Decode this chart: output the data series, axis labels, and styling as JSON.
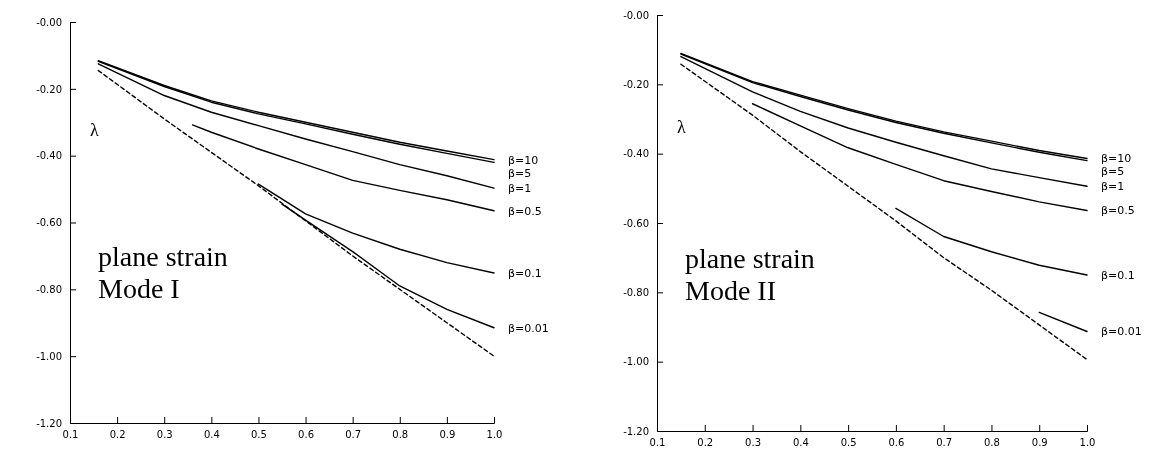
{
  "chart_data": [
    {
      "type": "line",
      "ylabel": "λ",
      "annotations": [
        "plane strain\nMode I"
      ],
      "xlim": [
        0.1,
        1.0
      ],
      "ylim": [
        -1.2,
        0
      ],
      "xticks": [
        0.1,
        0.2,
        0.3,
        0.4,
        0.5,
        0.6,
        0.7,
        0.8,
        0.9,
        {
          "value": 1.0,
          "label": "1.0"
        }
      ],
      "yticks": [
        {
          "value": -1.2,
          "label": "-1.20"
        },
        {
          "value": -1.0,
          "label": "-1.00"
        },
        {
          "value": -0.8,
          "label": "-0.80"
        },
        {
          "value": -0.6,
          "label": "-0.60"
        },
        {
          "value": -0.4,
          "label": "-0.40"
        },
        {
          "value": -0.2,
          "label": "-0.20"
        },
        {
          "value": 0,
          "label": "-0.00"
        }
      ],
      "grid": false,
      "series": [
        {
          "name": "β=10",
          "color": "#000000",
          "x": [
            0.16,
            0.3,
            0.4,
            0.5,
            0.6,
            0.7,
            0.8,
            0.9,
            1.0
          ],
          "values": [
            -0.116,
            -0.19,
            -0.236,
            -0.27,
            -0.3,
            -0.33,
            -0.36,
            -0.386,
            -0.412
          ]
        },
        {
          "name": "β=5",
          "color": "#000000",
          "x": [
            0.16,
            0.3,
            0.4,
            0.5,
            0.6,
            0.7,
            0.8,
            0.9,
            1.0
          ],
          "values": [
            -0.118,
            -0.193,
            -0.24,
            -0.275,
            -0.305,
            -0.336,
            -0.366,
            -0.393,
            -0.42
          ]
        },
        {
          "name": "β=1",
          "color": "#000000",
          "x": [
            0.16,
            0.3,
            0.4,
            0.5,
            0.6,
            0.7,
            0.8,
            0.9,
            1.0
          ],
          "values": [
            -0.125,
            -0.22,
            -0.27,
            -0.31,
            -0.35,
            -0.388,
            -0.427,
            -0.46,
            -0.497
          ]
        },
        {
          "name": "β=0.5",
          "color": "#000000",
          "x": [
            0.36,
            0.4,
            0.5,
            0.6,
            0.7,
            0.8,
            0.9,
            1.0
          ],
          "values": [
            -0.308,
            -0.33,
            -0.38,
            -0.427,
            -0.474,
            -0.504,
            -0.532,
            -0.565
          ]
        },
        {
          "name": "β=0.1",
          "color": "#000000",
          "x": [
            0.5,
            0.6,
            0.7,
            0.8,
            0.9,
            1.0
          ],
          "values": [
            -0.485,
            -0.574,
            -0.632,
            -0.68,
            -0.72,
            -0.751
          ]
        },
        {
          "name": "β=0.01",
          "color": "#000000",
          "x": [
            0.55,
            0.6,
            0.7,
            0.8,
            0.9,
            1.0
          ],
          "values": [
            -0.545,
            -0.593,
            -0.687,
            -0.79,
            -0.86,
            -0.915
          ]
        },
        {
          "color": "#000000",
          "line_style": "dashed",
          "x": [
            0.16,
            0.3,
            0.4,
            0.5,
            0.6,
            0.7,
            0.8,
            0.9,
            1.0
          ],
          "values": [
            -0.145,
            -0.29,
            -0.39,
            -0.49,
            -0.595,
            -0.7,
            -0.8,
            -0.9,
            -1.0
          ]
        }
      ]
    },
    {
      "type": "line",
      "ylabel": "λ",
      "annotations": [
        "plane strain\nMode II"
      ],
      "xlim": [
        0.1,
        1.0
      ],
      "ylim": [
        -1.2,
        0
      ],
      "xticks": [
        0.1,
        0.2,
        0.3,
        0.4,
        0.5,
        0.6,
        0.7,
        0.8,
        0.9,
        {
          "value": 1.0,
          "label": "1.0"
        }
      ],
      "yticks": [
        {
          "value": -1.2,
          "label": "-1.20"
        },
        {
          "value": -1.0,
          "label": "-1.00"
        },
        {
          "value": -0.8,
          "label": "-0.80"
        },
        {
          "value": -0.6,
          "label": "-0.60"
        },
        {
          "value": -0.4,
          "label": "-0.40"
        },
        {
          "value": -0.2,
          "label": "-0.20"
        },
        {
          "value": 0,
          "label": "-0.00"
        }
      ],
      "grid": false,
      "series": [
        {
          "name": "β=10",
          "color": "#000000",
          "x": [
            0.15,
            0.3,
            0.4,
            0.5,
            0.6,
            0.7,
            0.8,
            0.9,
            1.0
          ],
          "values": [
            -0.111,
            -0.192,
            -0.231,
            -0.27,
            -0.306,
            -0.337,
            -0.364,
            -0.391,
            -0.414
          ]
        },
        {
          "name": "β=5",
          "color": "#000000",
          "x": [
            0.15,
            0.3,
            0.4,
            0.5,
            0.6,
            0.7,
            0.8,
            0.9,
            1.0
          ],
          "values": [
            -0.113,
            -0.195,
            -0.235,
            -0.274,
            -0.31,
            -0.341,
            -0.369,
            -0.396,
            -0.42
          ]
        },
        {
          "name": "β=1",
          "color": "#000000",
          "x": [
            0.15,
            0.3,
            0.4,
            0.5,
            0.6,
            0.7,
            0.8,
            0.9,
            1.0
          ],
          "values": [
            -0.12,
            -0.222,
            -0.278,
            -0.326,
            -0.367,
            -0.406,
            -0.444,
            -0.469,
            -0.494
          ]
        },
        {
          "name": "β=0.5",
          "color": "#000000",
          "x": [
            0.3,
            0.4,
            0.5,
            0.6,
            0.7,
            0.8,
            0.9,
            1.0
          ],
          "values": [
            -0.256,
            -0.32,
            -0.383,
            -0.431,
            -0.478,
            -0.509,
            -0.539,
            -0.564
          ]
        },
        {
          "name": "β=0.1",
          "color": "#000000",
          "x": [
            0.6,
            0.7,
            0.8,
            0.9,
            1.0
          ],
          "values": [
            -0.558,
            -0.639,
            -0.683,
            -0.722,
            -0.75
          ]
        },
        {
          "name": "β=0.01",
          "color": "#000000",
          "x": [
            0.9,
            1.0
          ],
          "values": [
            -0.858,
            -0.913
          ]
        },
        {
          "color": "#000000",
          "line_style": "dashed",
          "x": [
            0.15,
            0.3,
            0.4,
            0.5,
            0.6,
            0.7,
            0.8,
            0.9,
            1.0
          ],
          "values": [
            -0.142,
            -0.289,
            -0.394,
            -0.494,
            -0.594,
            -0.7,
            -0.794,
            -0.894,
            -0.994
          ]
        }
      ]
    }
  ]
}
